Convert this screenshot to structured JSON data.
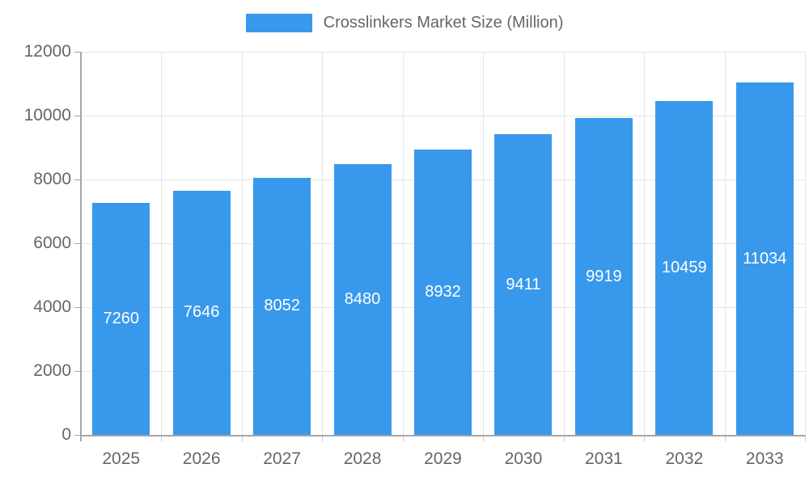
{
  "chart_data": {
    "type": "bar",
    "title": "Crosslinkers Market Size (Million)",
    "legend_entries": [
      "Crosslinkers Market Size (Million)"
    ],
    "legend_position": "top-center",
    "categories": [
      "2025",
      "2026",
      "2027",
      "2028",
      "2029",
      "2030",
      "2031",
      "2032",
      "2033"
    ],
    "values": [
      7260,
      7646,
      8052,
      8480,
      8932,
      9411,
      9919,
      10459,
      11034
    ],
    "xlabel": "",
    "ylabel": "",
    "ylim": [
      0,
      12000
    ],
    "yticks": [
      0,
      2000,
      4000,
      6000,
      8000,
      10000,
      12000
    ],
    "ytick_labels": [
      "0",
      "2000",
      "4000",
      "6000",
      "8000",
      "10000",
      "12000"
    ],
    "grid": true,
    "bar_value_labels_visible": true
  },
  "colors": {
    "bar": "#3899EC",
    "bar_value_label": "#FFFFFF",
    "axis_line": "#A6A6A6",
    "gridline": "#E6E6E6",
    "boundary_tick": "#CCCCCC",
    "axis_text": "#666666",
    "legend_text": "#666666",
    "background": "#FFFFFF"
  }
}
